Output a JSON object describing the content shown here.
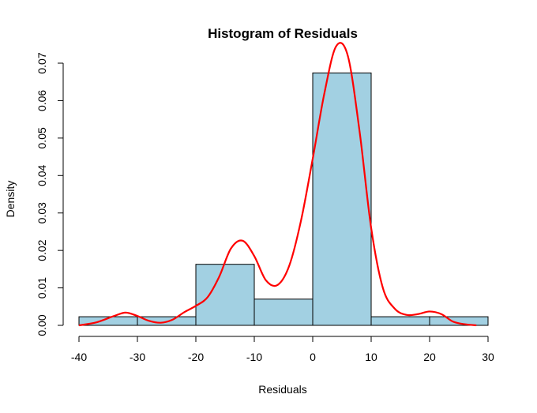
{
  "chart_data": {
    "type": "bar",
    "title": "Histogram of Residuals",
    "xlabel": "Residuals",
    "ylabel": "Density",
    "xlim": [
      -40,
      30
    ],
    "ylim": [
      0,
      0.07
    ],
    "xticks": [
      "-40",
      "-30",
      "-20",
      "-10",
      "0",
      "10",
      "20",
      "30"
    ],
    "yticks": [
      "0.00",
      "0.01",
      "0.02",
      "0.03",
      "0.04",
      "0.05",
      "0.06",
      "0.07"
    ],
    "bins": [
      {
        "from": -40,
        "to": -30,
        "density": 0.0023
      },
      {
        "from": -30,
        "to": -20,
        "density": 0.0023
      },
      {
        "from": -20,
        "to": -10,
        "density": 0.0163
      },
      {
        "from": -10,
        "to": 0,
        "density": 0.007
      },
      {
        "from": 0,
        "to": 10,
        "density": 0.0674
      },
      {
        "from": 10,
        "to": 20,
        "density": 0.0023
      },
      {
        "from": 20,
        "to": 30,
        "density": 0.0023
      }
    ],
    "density_curve": {
      "x": [
        -40,
        -37,
        -34,
        -32,
        -30,
        -28,
        -26,
        -24,
        -22,
        -20,
        -18,
        -16,
        -14,
        -12,
        -10,
        -8,
        -6,
        -4,
        -2,
        0,
        2,
        4,
        6,
        8,
        10,
        12,
        14,
        16,
        18,
        20,
        22,
        24,
        26,
        28
      ],
      "y": [
        0.0,
        0.0008,
        0.0025,
        0.0034,
        0.0025,
        0.0012,
        0.0007,
        0.0015,
        0.0035,
        0.0052,
        0.0075,
        0.013,
        0.0205,
        0.0226,
        0.0185,
        0.012,
        0.0108,
        0.016,
        0.028,
        0.0445,
        0.062,
        0.0745,
        0.072,
        0.052,
        0.026,
        0.01,
        0.0045,
        0.0028,
        0.003,
        0.0037,
        0.003,
        0.001,
        0.0003,
        0.0
      ],
      "color": "#ff0000"
    },
    "bar_color": "#a2d0e2",
    "grid": false
  }
}
